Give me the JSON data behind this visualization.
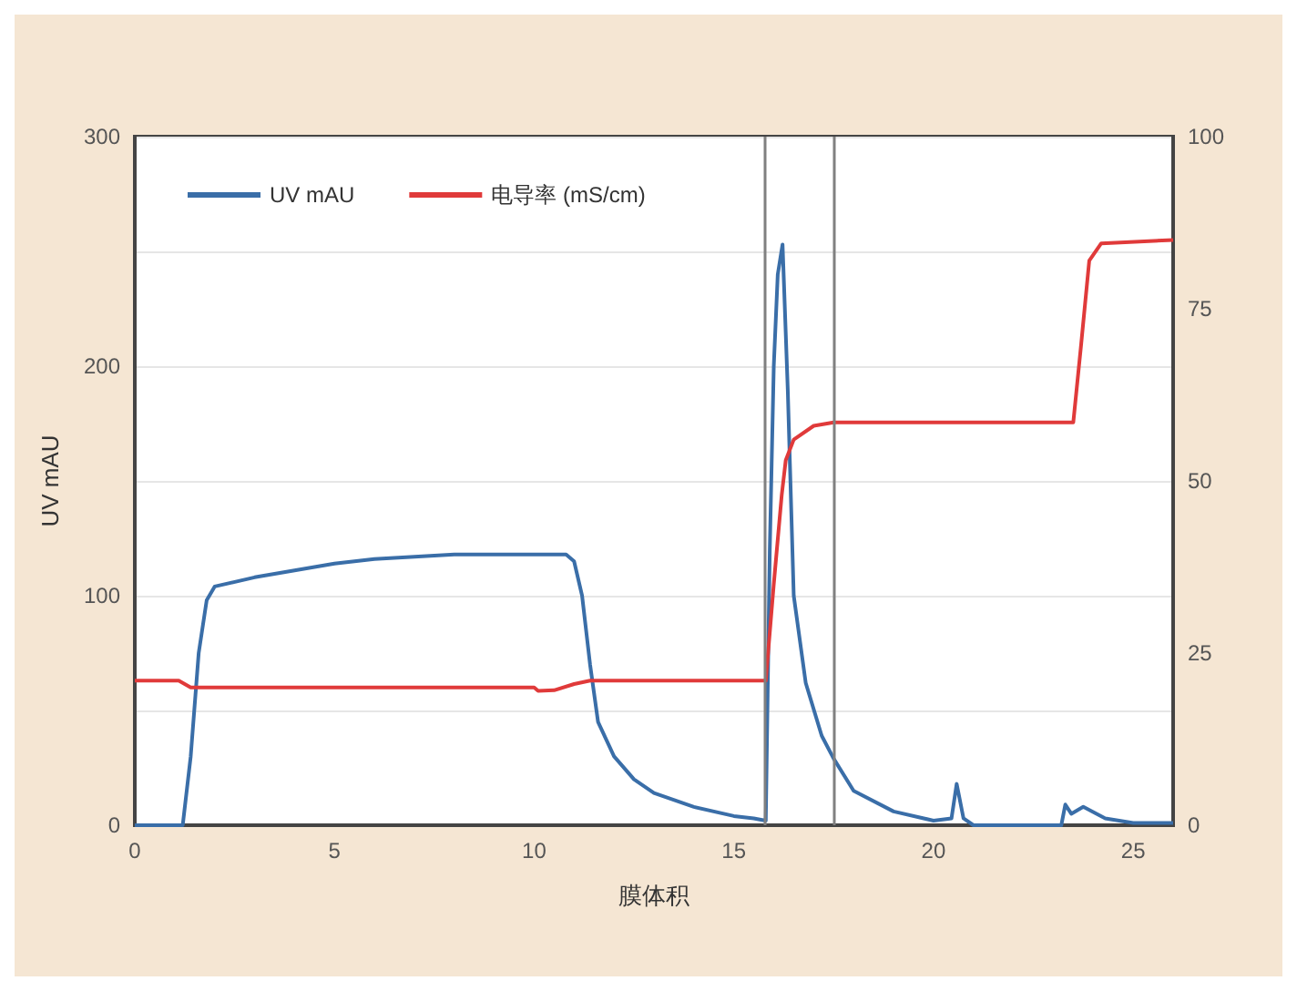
{
  "chart_data": {
    "type": "line",
    "xlabel": "膜体积",
    "ylabel": "UV mAU",
    "xlim": [
      0,
      26
    ],
    "xticks": [
      0,
      5,
      10,
      15,
      20,
      25
    ],
    "ylim": [
      0,
      300
    ],
    "yticks": [
      0,
      {
        "value": 50,
        "label": null
      },
      100,
      {
        "value": 150,
        "label": null
      },
      200,
      {
        "value": 250,
        "label": null
      },
      300
    ],
    "y2lim": [
      0,
      100
    ],
    "y2ticks": [
      0,
      25,
      50,
      75,
      100
    ],
    "grid": "y",
    "legend": "top left",
    "marker": "none",
    "line_style": "solid",
    "ref_lines": [
      {
        "axis": "x",
        "value": 15.75,
        "color": "#808080"
      },
      {
        "axis": "x",
        "value": 17.5,
        "color": "#808080"
      }
    ],
    "series": [
      {
        "name": "UV mAU",
        "color": "#3a6ea8",
        "x": [
          0,
          1.2,
          1.4,
          1.6,
          1.8,
          2.0,
          3,
          4,
          5,
          6,
          7,
          8,
          9,
          10,
          10.8,
          11.0,
          11.2,
          11.4,
          11.6,
          12,
          12.5,
          13,
          14,
          15,
          15.5,
          15.8,
          15.9,
          16.0,
          16.1,
          16.22,
          16.35,
          16.5,
          16.8,
          17.2,
          17.5,
          18,
          19,
          20,
          20.45,
          20.58,
          20.75,
          21,
          23.2,
          23.3,
          23.45,
          23.75,
          24.3,
          25,
          26
        ],
        "values": [
          0,
          0,
          30,
          75,
          98,
          104,
          108,
          111,
          114,
          116,
          117,
          118,
          118,
          118,
          118,
          115,
          100,
          70,
          45,
          30,
          20,
          14,
          8,
          4,
          3,
          2,
          120,
          200,
          240,
          253,
          190,
          100,
          62,
          39,
          29,
          15,
          6,
          2,
          3,
          18,
          3,
          0,
          0,
          9,
          5,
          8,
          3,
          1,
          1
        ]
      },
      {
        "name": "电导率 (mS/cm)",
        "color": "#e03a3a",
        "axis": "y2",
        "x": [
          0,
          1.1,
          1.4,
          2,
          5,
          10,
          10.1,
          10.5,
          11,
          11.4,
          15.8,
          16.0,
          16.2,
          16.3,
          16.5,
          17,
          17.5,
          20,
          23.5,
          23.7,
          23.9,
          24.2,
          26
        ],
        "values": [
          21,
          21,
          20,
          20,
          20,
          20,
          19.5,
          19.6,
          20.5,
          21,
          21,
          35,
          48,
          53,
          56,
          58,
          58.5,
          58.5,
          58.5,
          70,
          82,
          84.5,
          85
        ]
      }
    ]
  }
}
